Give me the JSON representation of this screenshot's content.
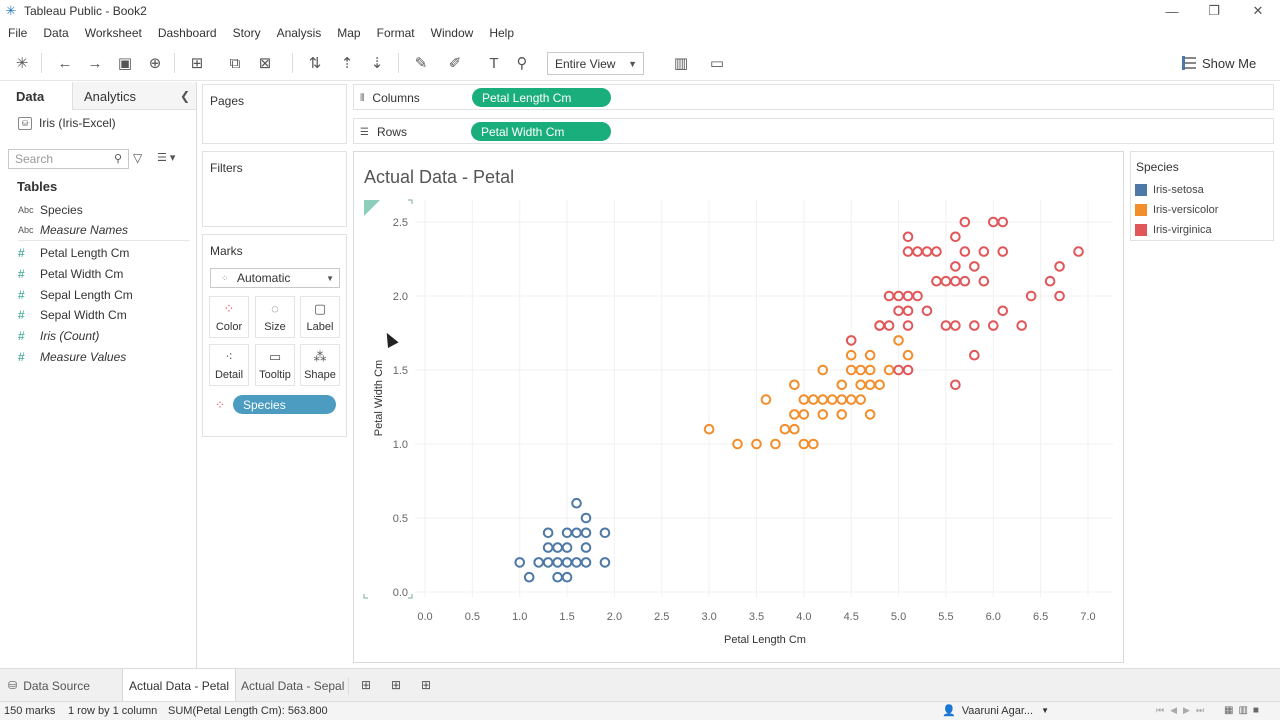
{
  "window": {
    "title": "Tableau Public - Book2"
  },
  "menu": [
    "File",
    "Data",
    "Worksheet",
    "Dashboard",
    "Story",
    "Analysis",
    "Map",
    "Format",
    "Window",
    "Help"
  ],
  "toolbar": {
    "view_select": "Entire View",
    "show_me": "Show Me"
  },
  "data_pane": {
    "tab_data": "Data",
    "tab_analytics": "Analytics",
    "datasource": "Iris (Iris-Excel)",
    "search_placeholder": "Search",
    "tables_header": "Tables",
    "fields": [
      {
        "type": "Abc",
        "name": "Species",
        "italic": false
      },
      {
        "type": "Abc",
        "name": "Measure Names",
        "italic": true
      },
      {
        "type": "#",
        "name": "Petal Length Cm",
        "italic": false
      },
      {
        "type": "#",
        "name": "Petal Width Cm",
        "italic": false
      },
      {
        "type": "#",
        "name": "Sepal Length Cm",
        "italic": false
      },
      {
        "type": "#",
        "name": "Sepal Width Cm",
        "italic": false
      },
      {
        "type": "#",
        "name": "Iris (Count)",
        "italic": true
      },
      {
        "type": "#",
        "name": "Measure Values",
        "italic": true
      }
    ]
  },
  "cards": {
    "pages": "Pages",
    "filters": "Filters",
    "marks": "Marks",
    "mark_type": "Automatic",
    "mark_buttons": [
      "Color",
      "Size",
      "Label",
      "Detail",
      "Tooltip",
      "Shape"
    ],
    "species_pill": "Species"
  },
  "shelves": {
    "columns_label": "Columns",
    "columns_pill": "Petal Length Cm",
    "rows_label": "Rows",
    "rows_pill": "Petal Width Cm"
  },
  "sheet": {
    "title": "Actual Data - Petal"
  },
  "legend": {
    "title": "Species",
    "items": [
      {
        "name": "Iris-setosa",
        "color": "#4e79a7"
      },
      {
        "name": "Iris-versicolor",
        "color": "#f28e2b"
      },
      {
        "name": "Iris-virginica",
        "color": "#e15759"
      }
    ]
  },
  "chart_data": {
    "type": "scatter",
    "title": "Actual Data - Petal",
    "xlabel": "Petal Length Cm",
    "ylabel": "Petal Width Cm",
    "xlim": [
      0,
      7.0
    ],
    "ylim": [
      0,
      2.5
    ],
    "x_ticks": [
      "0.0",
      "0.5",
      "1.0",
      "1.5",
      "2.0",
      "2.5",
      "3.0",
      "3.5",
      "4.0",
      "4.5",
      "5.0",
      "5.5",
      "6.0",
      "6.5",
      "7.0"
    ],
    "y_ticks": [
      "0.0",
      "0.5",
      "1.0",
      "1.5",
      "2.0",
      "2.5"
    ],
    "grid": true,
    "series": [
      {
        "name": "Iris-setosa",
        "color": "#4e79a7",
        "points": [
          [
            1.0,
            0.2
          ],
          [
            1.1,
            0.1
          ],
          [
            1.2,
            0.2
          ],
          [
            1.3,
            0.2
          ],
          [
            1.4,
            0.2
          ],
          [
            1.5,
            0.2
          ],
          [
            1.6,
            0.2
          ],
          [
            1.7,
            0.2
          ],
          [
            1.9,
            0.2
          ],
          [
            1.3,
            0.3
          ],
          [
            1.4,
            0.3
          ],
          [
            1.5,
            0.3
          ],
          [
            1.7,
            0.3
          ],
          [
            1.3,
            0.4
          ],
          [
            1.5,
            0.4
          ],
          [
            1.6,
            0.4
          ],
          [
            1.7,
            0.4
          ],
          [
            1.9,
            0.4
          ],
          [
            1.4,
            0.1
          ],
          [
            1.5,
            0.1
          ],
          [
            1.7,
            0.5
          ],
          [
            1.6,
            0.6
          ]
        ]
      },
      {
        "name": "Iris-versicolor",
        "color": "#f28e2b",
        "points": [
          [
            3.0,
            1.1
          ],
          [
            3.3,
            1.0
          ],
          [
            3.5,
            1.0
          ],
          [
            3.7,
            1.0
          ],
          [
            4.0,
            1.0
          ],
          [
            4.1,
            1.0
          ],
          [
            3.8,
            1.1
          ],
          [
            3.9,
            1.1
          ],
          [
            3.9,
            1.2
          ],
          [
            4.0,
            1.2
          ],
          [
            4.2,
            1.2
          ],
          [
            4.4,
            1.2
          ],
          [
            4.7,
            1.2
          ],
          [
            3.6,
            1.3
          ],
          [
            4.0,
            1.3
          ],
          [
            4.1,
            1.3
          ],
          [
            4.2,
            1.3
          ],
          [
            4.3,
            1.3
          ],
          [
            4.4,
            1.3
          ],
          [
            4.5,
            1.3
          ],
          [
            4.6,
            1.3
          ],
          [
            3.9,
            1.4
          ],
          [
            4.4,
            1.4
          ],
          [
            4.6,
            1.4
          ],
          [
            4.7,
            1.4
          ],
          [
            4.8,
            1.4
          ],
          [
            4.2,
            1.5
          ],
          [
            4.5,
            1.5
          ],
          [
            4.6,
            1.5
          ],
          [
            4.7,
            1.5
          ],
          [
            4.9,
            1.5
          ],
          [
            5.0,
            1.7
          ],
          [
            4.5,
            1.6
          ],
          [
            4.7,
            1.6
          ],
          [
            5.1,
            1.6
          ],
          [
            4.8,
            1.8
          ]
        ]
      },
      {
        "name": "Iris-virginica",
        "color": "#e15759",
        "points": [
          [
            5.6,
            1.4
          ],
          [
            5.0,
            1.5
          ],
          [
            5.1,
            1.5
          ],
          [
            5.8,
            1.6
          ],
          [
            4.5,
            1.7
          ],
          [
            4.8,
            1.8
          ],
          [
            4.9,
            1.8
          ],
          [
            5.1,
            1.8
          ],
          [
            5.5,
            1.8
          ],
          [
            5.6,
            1.8
          ],
          [
            5.8,
            1.8
          ],
          [
            6.0,
            1.8
          ],
          [
            6.3,
            1.8
          ],
          [
            5.0,
            1.9
          ],
          [
            5.1,
            1.9
          ],
          [
            5.3,
            1.9
          ],
          [
            6.1,
            1.9
          ],
          [
            4.9,
            2.0
          ],
          [
            5.0,
            2.0
          ],
          [
            5.1,
            2.0
          ],
          [
            5.2,
            2.0
          ],
          [
            6.4,
            2.0
          ],
          [
            6.7,
            2.0
          ],
          [
            5.4,
            2.1
          ],
          [
            5.5,
            2.1
          ],
          [
            5.6,
            2.1
          ],
          [
            5.7,
            2.1
          ],
          [
            5.9,
            2.1
          ],
          [
            6.6,
            2.1
          ],
          [
            5.6,
            2.2
          ],
          [
            5.8,
            2.2
          ],
          [
            6.7,
            2.2
          ],
          [
            5.1,
            2.3
          ],
          [
            5.2,
            2.3
          ],
          [
            5.3,
            2.3
          ],
          [
            5.4,
            2.3
          ],
          [
            5.7,
            2.3
          ],
          [
            5.9,
            2.3
          ],
          [
            6.1,
            2.3
          ],
          [
            6.9,
            2.3
          ],
          [
            5.1,
            2.4
          ],
          [
            5.6,
            2.4
          ],
          [
            5.7,
            2.5
          ],
          [
            6.0,
            2.5
          ],
          [
            6.1,
            2.5
          ]
        ]
      }
    ]
  },
  "tabs": {
    "data_source": "Data Source",
    "sheets": [
      "Actual Data - Petal",
      "Actual Data - Sepal"
    ]
  },
  "status": {
    "marks": "150 marks",
    "rows_cols": "1 row by 1 column",
    "sum": "SUM(Petal Length Cm): 563.800",
    "user": "Vaaruni Agar..."
  }
}
